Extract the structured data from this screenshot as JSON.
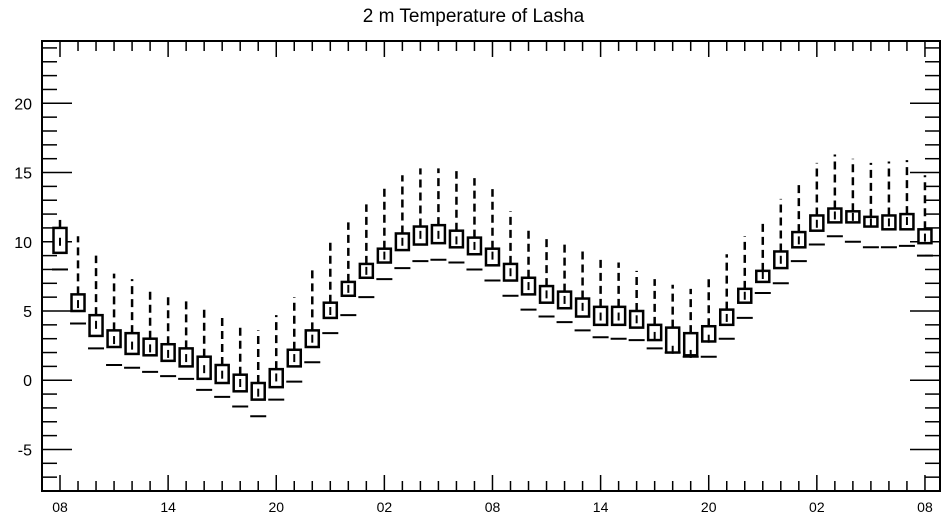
{
  "chart_data": {
    "type": "box",
    "title": "2 m Temperature of Lasha",
    "xlabel": "",
    "ylabel": "",
    "ylim": [
      -8,
      24.5
    ],
    "yticks": [
      -5,
      0,
      5,
      10,
      15,
      20
    ],
    "ytick_labels": [
      "-5",
      "0",
      "5",
      "10",
      "15",
      "20"
    ],
    "x_tick_labels": [
      {
        "slot": 0,
        "label": "08"
      },
      {
        "slot": 6,
        "label": "14"
      },
      {
        "slot": 12,
        "label": "20"
      },
      {
        "slot": 18,
        "label": "02"
      },
      {
        "slot": 24,
        "label": "08"
      },
      {
        "slot": 30,
        "label": "14"
      },
      {
        "slot": 36,
        "label": "20"
      },
      {
        "slot": 42,
        "label": "02"
      },
      {
        "slot": 48,
        "label": "08"
      }
    ],
    "grid": false,
    "boxes": [
      {
        "slot": 0,
        "min": 8.0,
        "q1": 9.2,
        "median": 10.0,
        "q3": 11.0,
        "max": 11.6
      },
      {
        "slot": 1,
        "min": 4.1,
        "q1": 5.0,
        "median": 5.5,
        "q3": 6.2,
        "max": 10.4
      },
      {
        "slot": 2,
        "min": 2.3,
        "q1": 3.2,
        "median": 4.0,
        "q3": 4.7,
        "max": 9.0
      },
      {
        "slot": 3,
        "min": 1.1,
        "q1": 2.4,
        "median": 2.9,
        "q3": 3.6,
        "max": 7.7
      },
      {
        "slot": 4,
        "min": 0.9,
        "q1": 1.9,
        "median": 2.5,
        "q3": 3.4,
        "max": 7.3
      },
      {
        "slot": 5,
        "min": 0.6,
        "q1": 1.8,
        "median": 2.3,
        "q3": 3.0,
        "max": 6.7
      },
      {
        "slot": 6,
        "min": 0.3,
        "q1": 1.4,
        "median": 1.9,
        "q3": 2.6,
        "max": 6.3
      },
      {
        "slot": 7,
        "min": 0.1,
        "q1": 1.0,
        "median": 1.6,
        "q3": 2.3,
        "max": 5.9
      },
      {
        "slot": 8,
        "min": -0.7,
        "q1": 0.1,
        "median": 0.8,
        "q3": 1.7,
        "max": 5.3
      },
      {
        "slot": 9,
        "min": -1.2,
        "q1": -0.2,
        "median": 0.4,
        "q3": 1.1,
        "max": 4.8
      },
      {
        "slot": 10,
        "min": -1.9,
        "q1": -0.8,
        "median": -0.2,
        "q3": 0.4,
        "max": 4.1
      },
      {
        "slot": 11,
        "min": -2.6,
        "q1": -1.4,
        "median": -0.9,
        "q3": -0.2,
        "max": 3.6
      },
      {
        "slot": 12,
        "min": -1.4,
        "q1": -0.5,
        "median": 0.2,
        "q3": 0.8,
        "max": 4.7
      },
      {
        "slot": 13,
        "min": -0.1,
        "q1": 1.0,
        "median": 1.6,
        "q3": 2.2,
        "max": 6.0
      },
      {
        "slot": 14,
        "min": 1.3,
        "q1": 2.4,
        "median": 3.0,
        "q3": 3.6,
        "max": 8.1
      },
      {
        "slot": 15,
        "min": 3.4,
        "q1": 4.5,
        "median": 5.0,
        "q3": 5.6,
        "max": 10.0
      },
      {
        "slot": 16,
        "min": 4.7,
        "q1": 6.1,
        "median": 6.6,
        "q3": 7.1,
        "max": 11.4
      },
      {
        "slot": 17,
        "min": 6.0,
        "q1": 7.4,
        "median": 7.9,
        "q3": 8.4,
        "max": 12.7
      },
      {
        "slot": 18,
        "min": 7.3,
        "q1": 8.5,
        "median": 9.0,
        "q3": 9.5,
        "max": 13.9
      },
      {
        "slot": 19,
        "min": 8.1,
        "q1": 9.4,
        "median": 10.0,
        "q3": 10.6,
        "max": 14.8
      },
      {
        "slot": 20,
        "min": 8.6,
        "q1": 9.8,
        "median": 10.5,
        "q3": 11.1,
        "max": 15.3
      },
      {
        "slot": 21,
        "min": 8.7,
        "q1": 9.9,
        "median": 10.5,
        "q3": 11.2,
        "max": 15.3
      },
      {
        "slot": 22,
        "min": 8.5,
        "q1": 9.6,
        "median": 10.1,
        "q3": 10.8,
        "max": 15.1
      },
      {
        "slot": 23,
        "min": 8.0,
        "q1": 9.1,
        "median": 9.7,
        "q3": 10.3,
        "max": 14.6
      },
      {
        "slot": 24,
        "min": 7.2,
        "q1": 8.3,
        "median": 9.0,
        "q3": 9.5,
        "max": 13.8
      },
      {
        "slot": 25,
        "min": 6.1,
        "q1": 7.2,
        "median": 7.8,
        "q3": 8.4,
        "max": 12.2
      },
      {
        "slot": 26,
        "min": 5.1,
        "q1": 6.2,
        "median": 6.8,
        "q3": 7.4,
        "max": 10.9
      },
      {
        "slot": 27,
        "min": 4.6,
        "q1": 5.6,
        "median": 6.2,
        "q3": 6.8,
        "max": 10.4
      },
      {
        "slot": 28,
        "min": 4.2,
        "q1": 5.2,
        "median": 5.8,
        "q3": 6.4,
        "max": 10.0
      },
      {
        "slot": 29,
        "min": 3.6,
        "q1": 4.6,
        "median": 5.3,
        "q3": 5.9,
        "max": 9.4
      },
      {
        "slot": 30,
        "min": 3.1,
        "q1": 4.0,
        "median": 4.6,
        "q3": 5.3,
        "max": 8.7
      },
      {
        "slot": 31,
        "min": 3.0,
        "q1": 4.0,
        "median": 4.6,
        "q3": 5.3,
        "max": 8.5
      },
      {
        "slot": 32,
        "min": 2.9,
        "q1": 3.8,
        "median": 4.4,
        "q3": 5.0,
        "max": 7.9
      },
      {
        "slot": 33,
        "min": 2.3,
        "q1": 2.9,
        "median": 3.2,
        "q3": 4.0,
        "max": 7.3
      },
      {
        "slot": 34,
        "min": 2.0,
        "q1": 2.0,
        "median": 2.2,
        "q3": 3.8,
        "max": 6.9
      },
      {
        "slot": 35,
        "min": 1.7,
        "q1": 1.8,
        "median": 1.9,
        "q3": 3.4,
        "max": 6.6
      },
      {
        "slot": 36,
        "min": 1.7,
        "q1": 2.8,
        "median": 3.0,
        "q3": 3.9,
        "max": 7.4
      },
      {
        "slot": 37,
        "min": 3.0,
        "q1": 4.0,
        "median": 4.5,
        "q3": 5.1,
        "max": 9.1
      },
      {
        "slot": 38,
        "min": 4.5,
        "q1": 5.6,
        "median": 6.1,
        "q3": 6.6,
        "max": 10.4
      },
      {
        "slot": 39,
        "min": 6.3,
        "q1": 7.1,
        "median": 7.6,
        "q3": 7.9,
        "max": 11.6
      },
      {
        "slot": 40,
        "min": 7.0,
        "q1": 8.1,
        "median": 8.7,
        "q3": 9.3,
        "max": 13.1
      },
      {
        "slot": 41,
        "min": 8.6,
        "q1": 9.6,
        "median": 10.1,
        "q3": 10.7,
        "max": 14.4
      },
      {
        "slot": 42,
        "min": 9.8,
        "q1": 10.8,
        "median": 11.3,
        "q3": 11.9,
        "max": 15.7
      },
      {
        "slot": 43,
        "min": 10.4,
        "q1": 11.4,
        "median": 11.9,
        "q3": 12.4,
        "max": 16.3
      },
      {
        "slot": 44,
        "min": 10.0,
        "q1": 11.4,
        "median": 11.8,
        "q3": 12.2,
        "max": 16.0
      },
      {
        "slot": 45,
        "min": 9.6,
        "q1": 11.1,
        "median": 11.4,
        "q3": 11.8,
        "max": 15.7
      },
      {
        "slot": 46,
        "min": 9.6,
        "q1": 10.9,
        "median": 11.4,
        "q3": 11.9,
        "max": 15.8
      },
      {
        "slot": 47,
        "min": 9.7,
        "q1": 10.9,
        "median": 11.5,
        "q3": 12.0,
        "max": 15.9
      },
      {
        "slot": 48,
        "min": 9.0,
        "q1": 9.9,
        "median": 10.3,
        "q3": 10.9,
        "max": 14.8
      }
    ]
  }
}
